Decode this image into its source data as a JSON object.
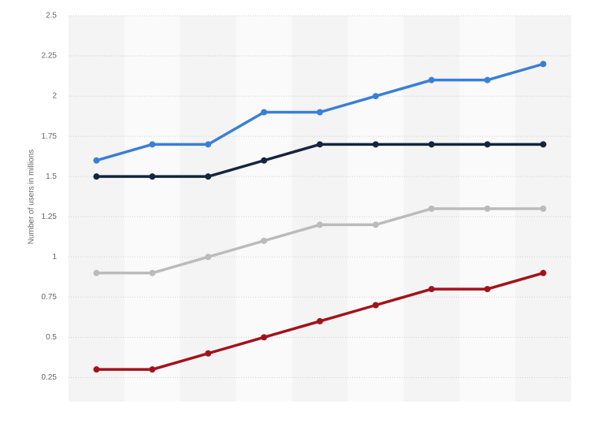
{
  "chart_data": {
    "type": "line",
    "y_label": "Number of users in millions",
    "categories": [
      null,
      null,
      null,
      null,
      null,
      null,
      null,
      null,
      null
    ],
    "series": [
      {
        "color": "#3a7fd5",
        "values": [
          1.6,
          1.7,
          1.7,
          1.9,
          1.9,
          2.0,
          2.1,
          2.1,
          2.2
        ]
      },
      {
        "color": "#14253d",
        "values": [
          1.5,
          1.5,
          1.5,
          1.6,
          1.7,
          1.7,
          1.7,
          1.7,
          1.7
        ]
      },
      {
        "color": "#bbbbbb",
        "values": [
          0.9,
          0.9,
          1.0,
          1.1,
          1.2,
          1.2,
          1.3,
          1.3,
          1.3
        ]
      },
      {
        "color": "#a3121b",
        "values": [
          0.3,
          0.3,
          0.4,
          0.5,
          0.6,
          0.7,
          0.8,
          0.8,
          0.9
        ]
      }
    ],
    "ylim": [
      0.1,
      2.5
    ],
    "yticks": [
      0.25,
      0.5,
      0.75,
      1,
      1.25,
      1.5,
      1.75,
      2,
      2.25,
      2.5
    ],
    "grid": true
  }
}
